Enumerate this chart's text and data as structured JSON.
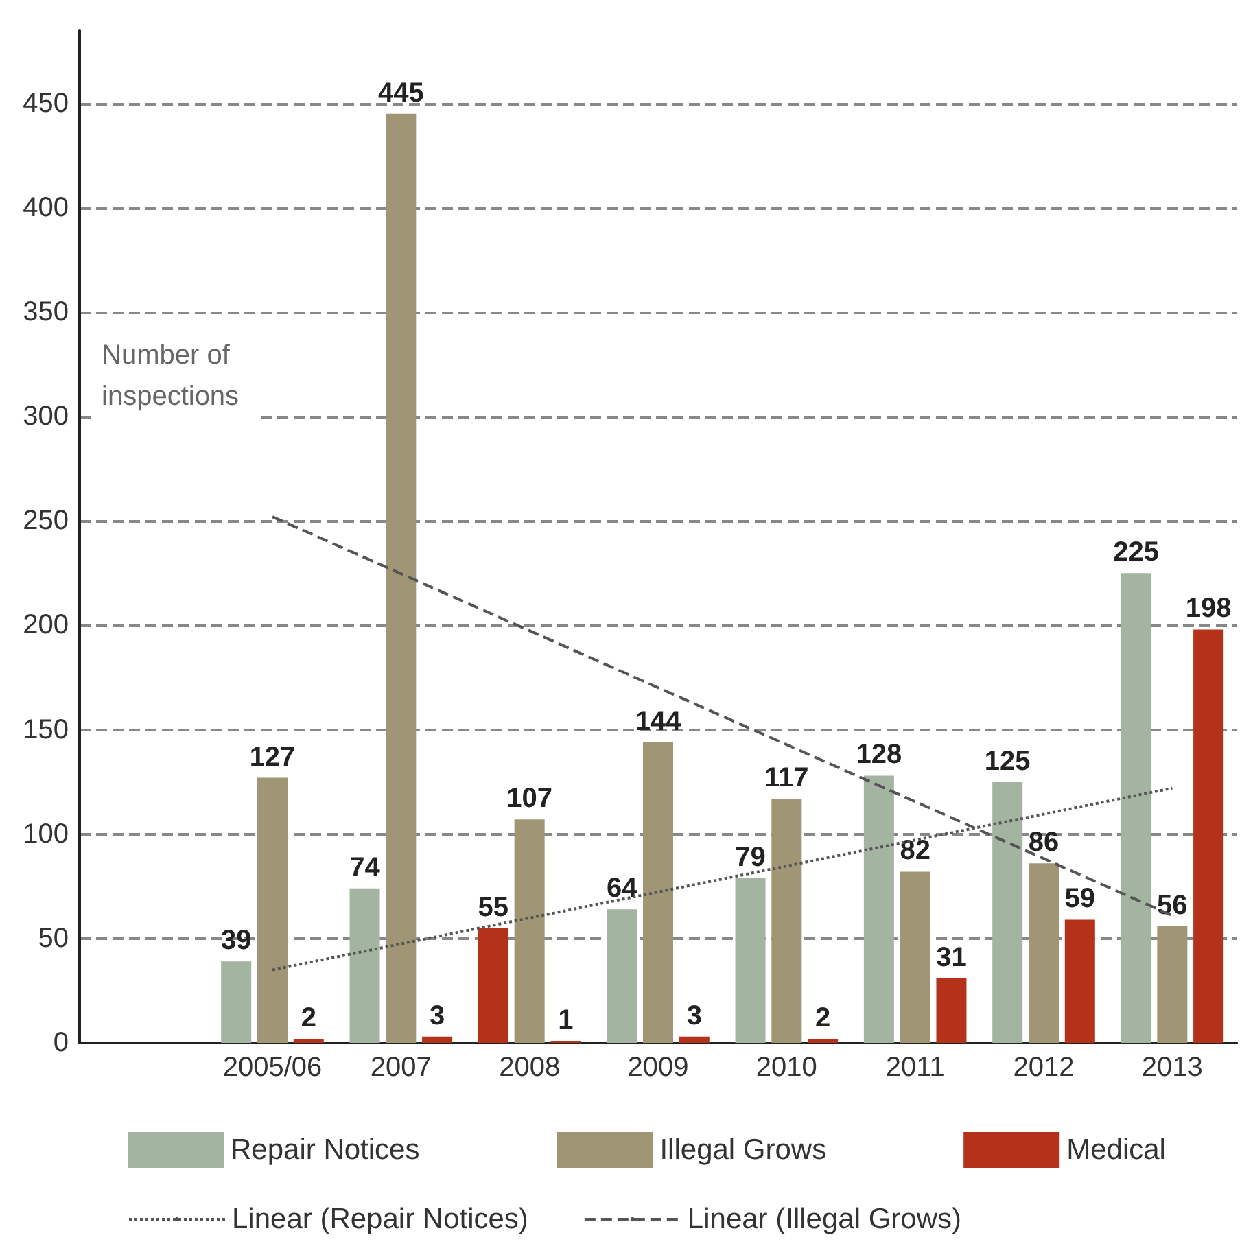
{
  "chart_data": {
    "type": "bar",
    "ylabel": "Number of inspections",
    "categories": [
      null,
      "2005/06",
      "2007",
      "2008",
      "2009",
      "2010",
      "2011",
      "2012",
      "2013"
    ],
    "series": [
      {
        "name": "Repair Notices",
        "color": "#a3b5a0",
        "colors": [
          null,
          "#a3b5a0",
          "#a3b5a0",
          "#b5321a",
          "#a3b5a0",
          "#a3b5a0",
          "#a3b5a0",
          "#a3b5a0",
          "#a3b5a0"
        ],
        "values": [
          null,
          39,
          74,
          55,
          64,
          79,
          128,
          125,
          225
        ],
        "value_labels": [
          null,
          "39",
          "74",
          "55",
          "64",
          "79",
          "128",
          "125",
          "225"
        ]
      },
      {
        "name": "Illegal Grows",
        "color": "#a09676",
        "values": [
          null,
          127,
          445,
          107,
          144,
          117,
          82,
          86,
          56
        ],
        "value_labels": [
          null,
          "127",
          "445",
          "107",
          "144",
          "117",
          "82",
          "86",
          "56"
        ]
      },
      {
        "name": "Medical",
        "color": "#b5321a",
        "values": [
          null,
          2,
          3,
          1,
          3,
          2,
          31,
          59,
          198
        ],
        "value_labels": [
          null,
          "2",
          "3",
          "1",
          "3",
          "2",
          "31",
          "59",
          "198"
        ]
      },
      {
        "name": "Linear (Repair Notices)",
        "type": "line",
        "line_style": "dotted",
        "color": "#555555",
        "values": [
          null,
          35,
          null,
          null,
          null,
          null,
          null,
          null,
          122
        ]
      },
      {
        "name": "Linear (Illegal Grows)",
        "type": "line",
        "line_style": "dashed",
        "color": "#555555",
        "values": [
          null,
          252,
          null,
          null,
          null,
          null,
          null,
          null,
          61
        ]
      }
    ],
    "ylim": [
      0,
      485
    ],
    "yticks": [
      0,
      50,
      100,
      150,
      200,
      250,
      300,
      350,
      400,
      450
    ],
    "grid": "y",
    "legend": "bottom",
    "marker": "none"
  }
}
